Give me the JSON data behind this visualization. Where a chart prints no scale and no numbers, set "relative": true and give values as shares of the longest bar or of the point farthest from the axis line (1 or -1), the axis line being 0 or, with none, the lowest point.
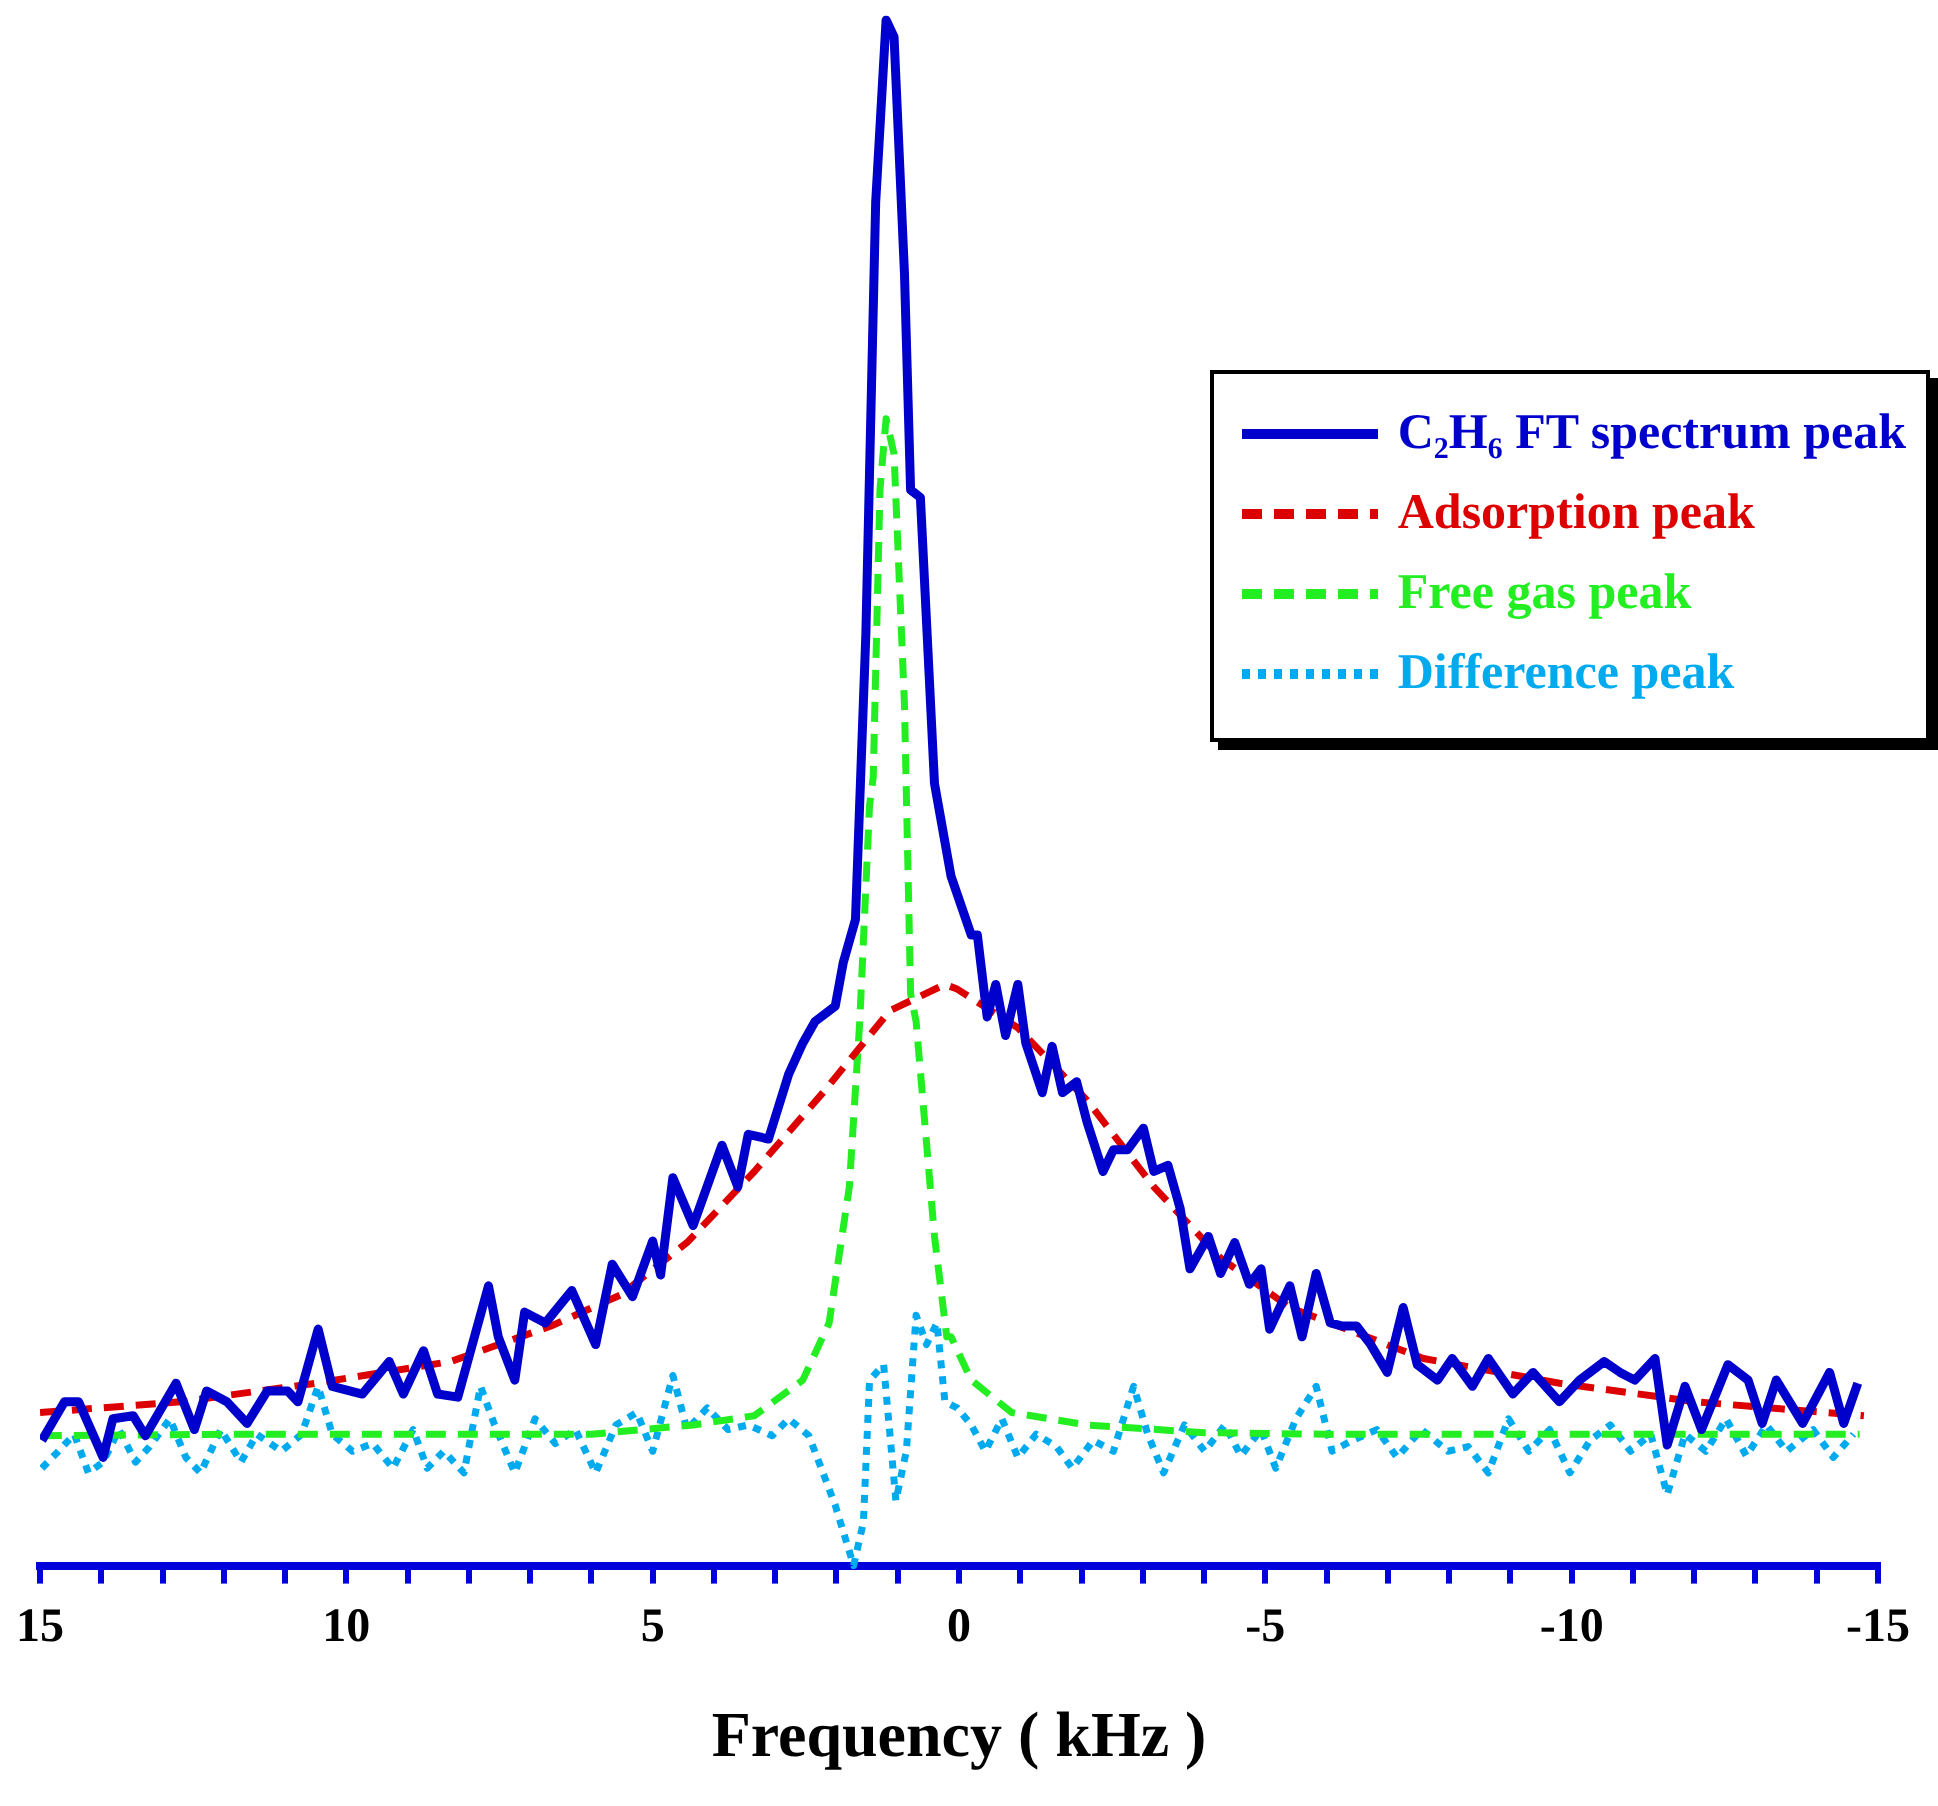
{
  "chart_data": {
    "type": "line",
    "xlabel": "Frequency ( kHz )",
    "relative": true,
    "legend": "top right",
    "xlim": [
      15,
      -15
    ],
    "xticks": [
      15,
      {
        "value": 14,
        "label": null
      },
      {
        "value": 13,
        "label": null
      },
      {
        "value": 12,
        "label": null
      },
      {
        "value": 11,
        "label": null
      },
      10,
      {
        "value": 9,
        "label": null
      },
      {
        "value": 8,
        "label": null
      },
      {
        "value": 7,
        "label": null
      },
      {
        "value": 6,
        "label": null
      },
      5,
      {
        "value": 4,
        "label": null
      },
      {
        "value": 3,
        "label": null
      },
      {
        "value": 2,
        "label": null
      },
      {
        "value": 1,
        "label": null
      },
      0,
      {
        "value": -1,
        "label": null
      },
      {
        "value": -2,
        "label": null
      },
      {
        "value": -3,
        "label": null
      },
      {
        "value": -4,
        "label": null
      },
      -5,
      {
        "value": -6,
        "label": null
      },
      {
        "value": -7,
        "label": null
      },
      {
        "value": -8,
        "label": null
      },
      {
        "value": -9,
        "label": null
      },
      -10,
      {
        "value": -11,
        "label": null
      },
      {
        "value": -12,
        "label": null
      },
      {
        "value": -13,
        "label": null
      },
      {
        "value": -14,
        "label": null
      },
      -15
    ],
    "series": [
      {
        "name": "C₂H₆ FT spectrum peak",
        "color": "#0000cc",
        "line_style": "solid",
        "x": [
          14.97,
          14.6,
          14.37,
          13.97,
          13.81,
          13.48,
          13.28,
          12.78,
          12.48,
          12.28,
          11.95,
          11.62,
          11.29,
          10.96,
          10.79,
          10.46,
          10.23,
          9.74,
          9.3,
          9.07,
          8.74,
          8.51,
          8.18,
          7.68,
          7.52,
          7.25,
          7.09,
          6.75,
          6.32,
          5.93,
          5.66,
          5.33,
          5.0,
          4.87,
          4.67,
          4.34,
          3.87,
          3.61,
          3.44,
          3.11,
          2.78,
          2.55,
          2.35,
          2.02,
          1.89,
          1.69,
          1.52,
          1.36,
          1.19,
          1.06,
          0.89,
          0.79,
          0.63,
          0.4,
          0.13,
          -0.2,
          -0.3,
          -0.46,
          -0.6,
          -0.76,
          -0.96,
          -1.09,
          -1.36,
          -1.52,
          -1.69,
          -1.92,
          -2.09,
          -2.35,
          -2.52,
          -2.75,
          -3.01,
          -3.18,
          -3.41,
          -3.61,
          -3.77,
          -4.07,
          -4.27,
          -4.5,
          -4.74,
          -4.93,
          -5.07,
          -5.4,
          -5.6,
          -5.83,
          -6.06,
          -6.26,
          -6.49,
          -6.72,
          -6.99,
          -7.25,
          -7.48,
          -7.81,
          -8.05,
          -8.38,
          -8.64,
          -9.04,
          -9.37,
          -9.8,
          -10.13,
          -10.53,
          -10.79,
          -11.03,
          -11.36,
          -11.56,
          -11.85,
          -12.12,
          -12.55,
          -12.88,
          -13.11,
          -13.34,
          -13.77,
          -14.21,
          -14.44,
          -14.67
        ],
        "values": [
          0.081,
          0.106,
          0.106,
          0.07,
          0.095,
          0.097,
          0.084,
          0.118,
          0.088,
          0.113,
          0.106,
          0.092,
          0.113,
          0.113,
          0.106,
          0.153,
          0.116,
          0.111,
          0.132,
          0.111,
          0.139,
          0.111,
          0.109,
          0.181,
          0.148,
          0.12,
          0.164,
          0.157,
          0.178,
          0.143,
          0.195,
          0.174,
          0.21,
          0.188,
          0.251,
          0.22,
          0.272,
          0.245,
          0.279,
          0.276,
          0.318,
          0.338,
          0.352,
          0.362,
          0.39,
          0.418,
          0.603,
          0.882,
          1,
          0.989,
          0.836,
          0.696,
          0.691,
          0.506,
          0.446,
          0.408,
          0.408,
          0.355,
          0.376,
          0.343,
          0.376,
          0.338,
          0.306,
          0.336,
          0.306,
          0.313,
          0.287,
          0.255,
          0.269,
          0.269,
          0.283,
          0.255,
          0.259,
          0.231,
          0.192,
          0.213,
          0.189,
          0.209,
          0.182,
          0.192,
          0.153,
          0.181,
          0.148,
          0.189,
          0.157,
          0.155,
          0.155,
          0.143,
          0.125,
          0.167,
          0.13,
          0.12,
          0.134,
          0.116,
          0.134,
          0.111,
          0.125,
          0.106,
          0.12,
          0.132,
          0.125,
          0.12,
          0.134,
          0.078,
          0.116,
          0.088,
          0.13,
          0.12,
          0.092,
          0.12,
          0.092,
          0.125,
          0.092,
          0.118
        ]
      },
      {
        "name": "Adsorption peak",
        "color": "#dd0000",
        "line_style": "dashed",
        "x": [
          15.0,
          12.7,
          10.5,
          8.3,
          6.66,
          5.53,
          4.44,
          3.34,
          2.22,
          1.13,
          0.23,
          0.03,
          -0.96,
          -2.09,
          -3.18,
          -4.27,
          -5.4,
          -7.58,
          -9.8,
          -12.02,
          -14.77
        ],
        "values": [
          0.099,
          0.106,
          0.118,
          0.132,
          0.155,
          0.175,
          0.209,
          0.255,
          0.306,
          0.359,
          0.376,
          0.373,
          0.348,
          0.301,
          0.245,
          0.199,
          0.167,
          0.134,
          0.118,
          0.106,
          0.097
        ]
      },
      {
        "name": "Free gas peak",
        "color": "#22ee22",
        "line_style": "dashed",
        "x": [
          14.97,
          12.0,
          9.0,
          6.0,
          4.34,
          3.34,
          2.55,
          2.12,
          1.79,
          1.62,
          1.46,
          1.4,
          1.29,
          1.19,
          1.06,
          0.89,
          0.79,
          0.7,
          0.4,
          0.2,
          0.13,
          -0.2,
          -0.86,
          -2.09,
          -4.0,
          -6.0,
          -9.0,
          -12.0,
          -14.7
        ],
        "values": [
          0.084,
          0.085,
          0.085,
          0.085,
          0.091,
          0.097,
          0.12,
          0.157,
          0.245,
          0.352,
          0.492,
          0.51,
          0.696,
          0.742,
          0.719,
          0.557,
          0.37,
          0.352,
          0.213,
          0.148,
          0.148,
          0.12,
          0.099,
          0.091,
          0.086,
          0.085,
          0.085,
          0.085,
          0.085
        ]
      },
      {
        "name": "Difference peak",
        "color": "#00aaee",
        "line_style": "dotted",
        "x": [
          14.97,
          14.7,
          14.44,
          14.21,
          13.97,
          13.71,
          13.44,
          13.21,
          12.88,
          12.62,
          12.38,
          12.05,
          11.72,
          11.46,
          11.06,
          10.73,
          10.46,
          10.23,
          9.9,
          9.57,
          9.24,
          8.91,
          8.68,
          8.41,
          8.08,
          7.81,
          7.58,
          7.25,
          6.92,
          6.59,
          6.26,
          5.93,
          5.6,
          5.26,
          5.0,
          4.67,
          4.44,
          4.11,
          3.77,
          3.44,
          3.05,
          2.78,
          2.45,
          2.22,
          2.02,
          1.72,
          1.56,
          1.46,
          1.23,
          1.03,
          0.86,
          0.7,
          0.53,
          0.36,
          0.23,
          0.03,
          -0.2,
          -0.43,
          -0.7,
          -0.96,
          -1.26,
          -1.59,
          -1.85,
          -2.19,
          -2.52,
          -2.85,
          -3.08,
          -3.34,
          -3.68,
          -4.01,
          -4.34,
          -4.6,
          -4.93,
          -5.17,
          -5.5,
          -5.83,
          -6.09,
          -6.42,
          -6.82,
          -7.15,
          -7.55,
          -7.98,
          -8.31,
          -8.64,
          -8.97,
          -9.3,
          -9.64,
          -9.97,
          -10.3,
          -10.63,
          -10.96,
          -11.29,
          -11.56,
          -11.85,
          -12.19,
          -12.52,
          -12.85,
          -13.18,
          -13.51,
          -13.94,
          -14.27,
          -14.6
        ],
        "values": [
          0.063,
          0.074,
          0.085,
          0.06,
          0.067,
          0.088,
          0.067,
          0.077,
          0.095,
          0.07,
          0.06,
          0.088,
          0.067,
          0.085,
          0.074,
          0.085,
          0.116,
          0.085,
          0.074,
          0.079,
          0.063,
          0.088,
          0.063,
          0.074,
          0.06,
          0.116,
          0.091,
          0.06,
          0.095,
          0.079,
          0.088,
          0.06,
          0.091,
          0.099,
          0.074,
          0.123,
          0.088,
          0.102,
          0.088,
          0.091,
          0.084,
          0.095,
          0.084,
          0.06,
          0.039,
          0,
          0.028,
          0.12,
          0.13,
          0.042,
          0.074,
          0.162,
          0.143,
          0.157,
          0.106,
          0.102,
          0.091,
          0.074,
          0.095,
          0.07,
          0.085,
          0.077,
          0.063,
          0.081,
          0.074,
          0.116,
          0.085,
          0.06,
          0.091,
          0.074,
          0.091,
          0.071,
          0.088,
          0.063,
          0.095,
          0.116,
          0.074,
          0.081,
          0.088,
          0.07,
          0.088,
          0.074,
          0.077,
          0.06,
          0.095,
          0.074,
          0.088,
          0.06,
          0.081,
          0.091,
          0.074,
          0.085,
          0.046,
          0.085,
          0.074,
          0.095,
          0.071,
          0.091,
          0.074,
          0.088,
          0.07,
          0.085
        ]
      }
    ]
  }
}
